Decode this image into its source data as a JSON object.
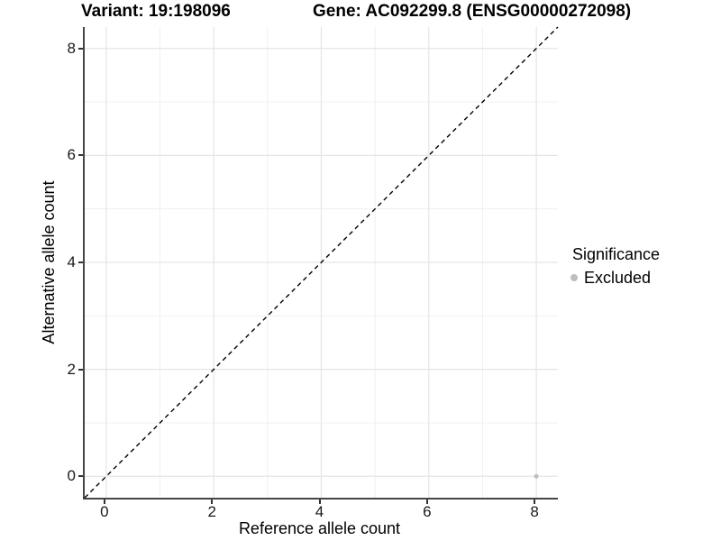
{
  "titles": {
    "variant": "Variant: 19:198096",
    "gene": "Gene: AC092299.8 (ENSG00000272098)"
  },
  "axes": {
    "x_label": "Reference allele count",
    "y_label": "Alternative allele count",
    "x_tick_labels": [
      "0",
      "2",
      "4",
      "6",
      "8"
    ],
    "y_tick_labels": [
      "0",
      "2",
      "4",
      "6",
      "8"
    ]
  },
  "legend": {
    "title": "Significance",
    "items": [
      {
        "label": "Excluded",
        "color": "#bebebe"
      }
    ]
  },
  "colors": {
    "point": "#bebebe",
    "grid_major": "#e5e5e5",
    "grid_minor": "#f0f0f0",
    "axis_line": "#464646",
    "tick_mark": "#333333",
    "reference_line": "#000000",
    "text": "#000000"
  },
  "chart_data": {
    "type": "scatter",
    "title": "Variant: 19:198096   Gene: AC092299.8 (ENSG00000272098)",
    "xlabel": "Reference allele count",
    "ylabel": "Alternative allele count",
    "xlim": [
      -0.4,
      8.4
    ],
    "ylim": [
      -0.4,
      8.4
    ],
    "x_ticks": [
      0,
      2,
      4,
      6,
      8
    ],
    "y_ticks": [
      0,
      2,
      4,
      6,
      8
    ],
    "x_minor_gridlines": [
      1,
      3,
      5,
      7
    ],
    "y_minor_gridlines": [
      1,
      3,
      5,
      7
    ],
    "grid": true,
    "legend_position": "right",
    "series": [
      {
        "name": "Excluded",
        "color": "#bebebe",
        "points": [
          {
            "x": 8,
            "y": 0
          }
        ]
      }
    ],
    "reference_line": {
      "type": "identity",
      "from": [
        -0.4,
        -0.4
      ],
      "to": [
        8.4,
        8.4
      ],
      "style": "dashed",
      "color": "#000000"
    }
  }
}
